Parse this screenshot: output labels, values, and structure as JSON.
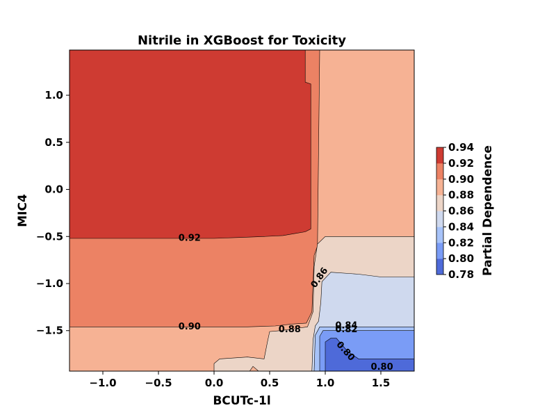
{
  "chart_data": {
    "type": "heatmap",
    "title": "Nitrile in XGBoost for Toxicity",
    "xlabel": "BCUTc-1l",
    "ylabel": "MIC4",
    "xlim": [
      -1.3,
      1.8
    ],
    "ylim": [
      -1.93,
      1.48
    ],
    "x_ticks": [
      -1.0,
      -0.5,
      0.0,
      0.5,
      1.0,
      1.5
    ],
    "x_tick_labels": [
      "−1.0",
      "−0.5",
      "0.0",
      "0.5",
      "1.0",
      "1.5"
    ],
    "y_ticks": [
      1.0,
      0.5,
      0.0,
      -0.5,
      -1.0,
      -1.5
    ],
    "y_tick_labels": [
      "1.0",
      "0.5",
      "0.0",
      "−0.5",
      "−1.0",
      "−1.5"
    ],
    "colorbar": {
      "label": "Partial Dependence",
      "levels": [
        0.78,
        0.8,
        0.82,
        0.84,
        0.86,
        0.88,
        0.9,
        0.92,
        0.94
      ],
      "tick_labels": [
        "0.78",
        "0.80",
        "0.82",
        "0.84",
        "0.86",
        "0.88",
        "0.90",
        "0.92",
        "0.94"
      ],
      "colors": [
        "#4e6ad9",
        "#7a9cf6",
        "#a7c3f9",
        "#cfd9ee",
        "#ecd5c7",
        "#f6b294",
        "#ec8264",
        "#ce3b32"
      ]
    },
    "contour_labels": [
      {
        "text": "0.92",
        "x": -0.22,
        "y": -0.52,
        "rotate": 0
      },
      {
        "text": "0.90",
        "x": -0.22,
        "y": -1.46,
        "rotate": 0
      },
      {
        "text": "0.88",
        "x": 0.68,
        "y": -1.49,
        "rotate": 0
      },
      {
        "text": "0.86",
        "x": 0.95,
        "y": -0.94,
        "rotate": -55
      },
      {
        "text": "0.84",
        "x": 1.19,
        "y": -1.45,
        "rotate": 0
      },
      {
        "text": "0.82",
        "x": 1.19,
        "y": -1.49,
        "rotate": 0
      },
      {
        "text": "0.80",
        "x": 1.18,
        "y": -1.72,
        "rotate": 48
      },
      {
        "text": "0.80",
        "x": 1.51,
        "y": -1.89,
        "rotate": 0
      }
    ],
    "regions": [
      {
        "level": 0.885,
        "color": "#f6b294",
        "points": [
          [
            -1.3,
            1.48
          ],
          [
            1.8,
            1.48
          ],
          [
            1.8,
            -1.93
          ],
          [
            -1.3,
            -1.93
          ]
        ]
      },
      {
        "level": 0.905,
        "color": "#ec8264",
        "points": [
          [
            -1.3,
            1.48
          ],
          [
            0.95,
            1.48
          ],
          [
            0.93,
            -0.6
          ],
          [
            0.9,
            -0.7
          ],
          [
            0.88,
            -1.3
          ],
          [
            0.83,
            -1.42
          ],
          [
            0.7,
            -1.43
          ],
          [
            0.55,
            -1.45
          ],
          [
            0.3,
            -1.46
          ],
          [
            0.0,
            -1.46
          ],
          [
            -1.3,
            -1.46
          ]
        ]
      },
      {
        "level": 0.925,
        "color": "#ce3b32",
        "points": [
          [
            -1.3,
            1.48
          ],
          [
            0.82,
            1.48
          ],
          [
            0.82,
            1.14
          ],
          [
            0.87,
            1.12
          ],
          [
            0.87,
            -0.42
          ],
          [
            0.82,
            -0.45
          ],
          [
            0.72,
            -0.47
          ],
          [
            0.62,
            -0.49
          ],
          [
            0.45,
            -0.5
          ],
          [
            0.25,
            -0.51
          ],
          [
            0.0,
            -0.52
          ],
          [
            -1.3,
            -0.52
          ]
        ]
      },
      {
        "level": 0.865,
        "color": "#ecd5c7",
        "points": [
          [
            1.8,
            -0.5
          ],
          [
            1.8,
            -1.93
          ],
          [
            0.4,
            -1.93
          ],
          [
            0.35,
            -1.88
          ],
          [
            0.32,
            -1.93
          ],
          [
            0.0,
            -1.93
          ],
          [
            0.0,
            -1.85
          ],
          [
            0.05,
            -1.8
          ],
          [
            0.3,
            -1.78
          ],
          [
            0.45,
            -1.8
          ],
          [
            0.48,
            -1.62
          ],
          [
            0.5,
            -1.51
          ],
          [
            0.6,
            -1.5
          ],
          [
            0.72,
            -1.48
          ],
          [
            0.84,
            -1.46
          ],
          [
            0.89,
            -1.3
          ],
          [
            0.9,
            -0.82
          ],
          [
            0.93,
            -0.58
          ],
          [
            1.0,
            -0.5
          ],
          [
            1.3,
            -0.5
          ]
        ]
      },
      {
        "level": 0.845,
        "color": "#cfd9ee",
        "points": [
          [
            1.8,
            -0.93
          ],
          [
            1.8,
            -1.93
          ],
          [
            0.88,
            -1.93
          ],
          [
            0.89,
            -1.6
          ],
          [
            0.91,
            -1.45
          ],
          [
            0.94,
            -1.4
          ],
          [
            0.96,
            -1.2
          ],
          [
            0.97,
            -0.98
          ],
          [
            1.05,
            -0.88
          ],
          [
            1.3,
            -0.9
          ],
          [
            1.5,
            -0.93
          ]
        ]
      },
      {
        "level": 0.825,
        "color": "#a7c3f9",
        "points": [
          [
            1.8,
            -1.46
          ],
          [
            1.8,
            -1.93
          ],
          [
            0.9,
            -1.93
          ],
          [
            0.91,
            -1.55
          ],
          [
            0.95,
            -1.46
          ],
          [
            1.3,
            -1.46
          ]
        ]
      },
      {
        "level": 0.805,
        "color": "#7a9cf6",
        "points": [
          [
            1.8,
            -1.5
          ],
          [
            1.8,
            -1.93
          ],
          [
            0.95,
            -1.93
          ],
          [
            0.95,
            -1.56
          ],
          [
            0.98,
            -1.5
          ],
          [
            1.3,
            -1.5
          ]
        ]
      },
      {
        "level": 0.79,
        "color": "#4e6ad9",
        "points": [
          [
            1.8,
            -1.8
          ],
          [
            1.8,
            -1.93
          ],
          [
            1.0,
            -1.93
          ],
          [
            1.0,
            -1.62
          ],
          [
            1.05,
            -1.58
          ],
          [
            1.1,
            -1.58
          ],
          [
            1.2,
            -1.72
          ],
          [
            1.3,
            -1.8
          ],
          [
            1.5,
            -1.8
          ]
        ]
      }
    ]
  }
}
